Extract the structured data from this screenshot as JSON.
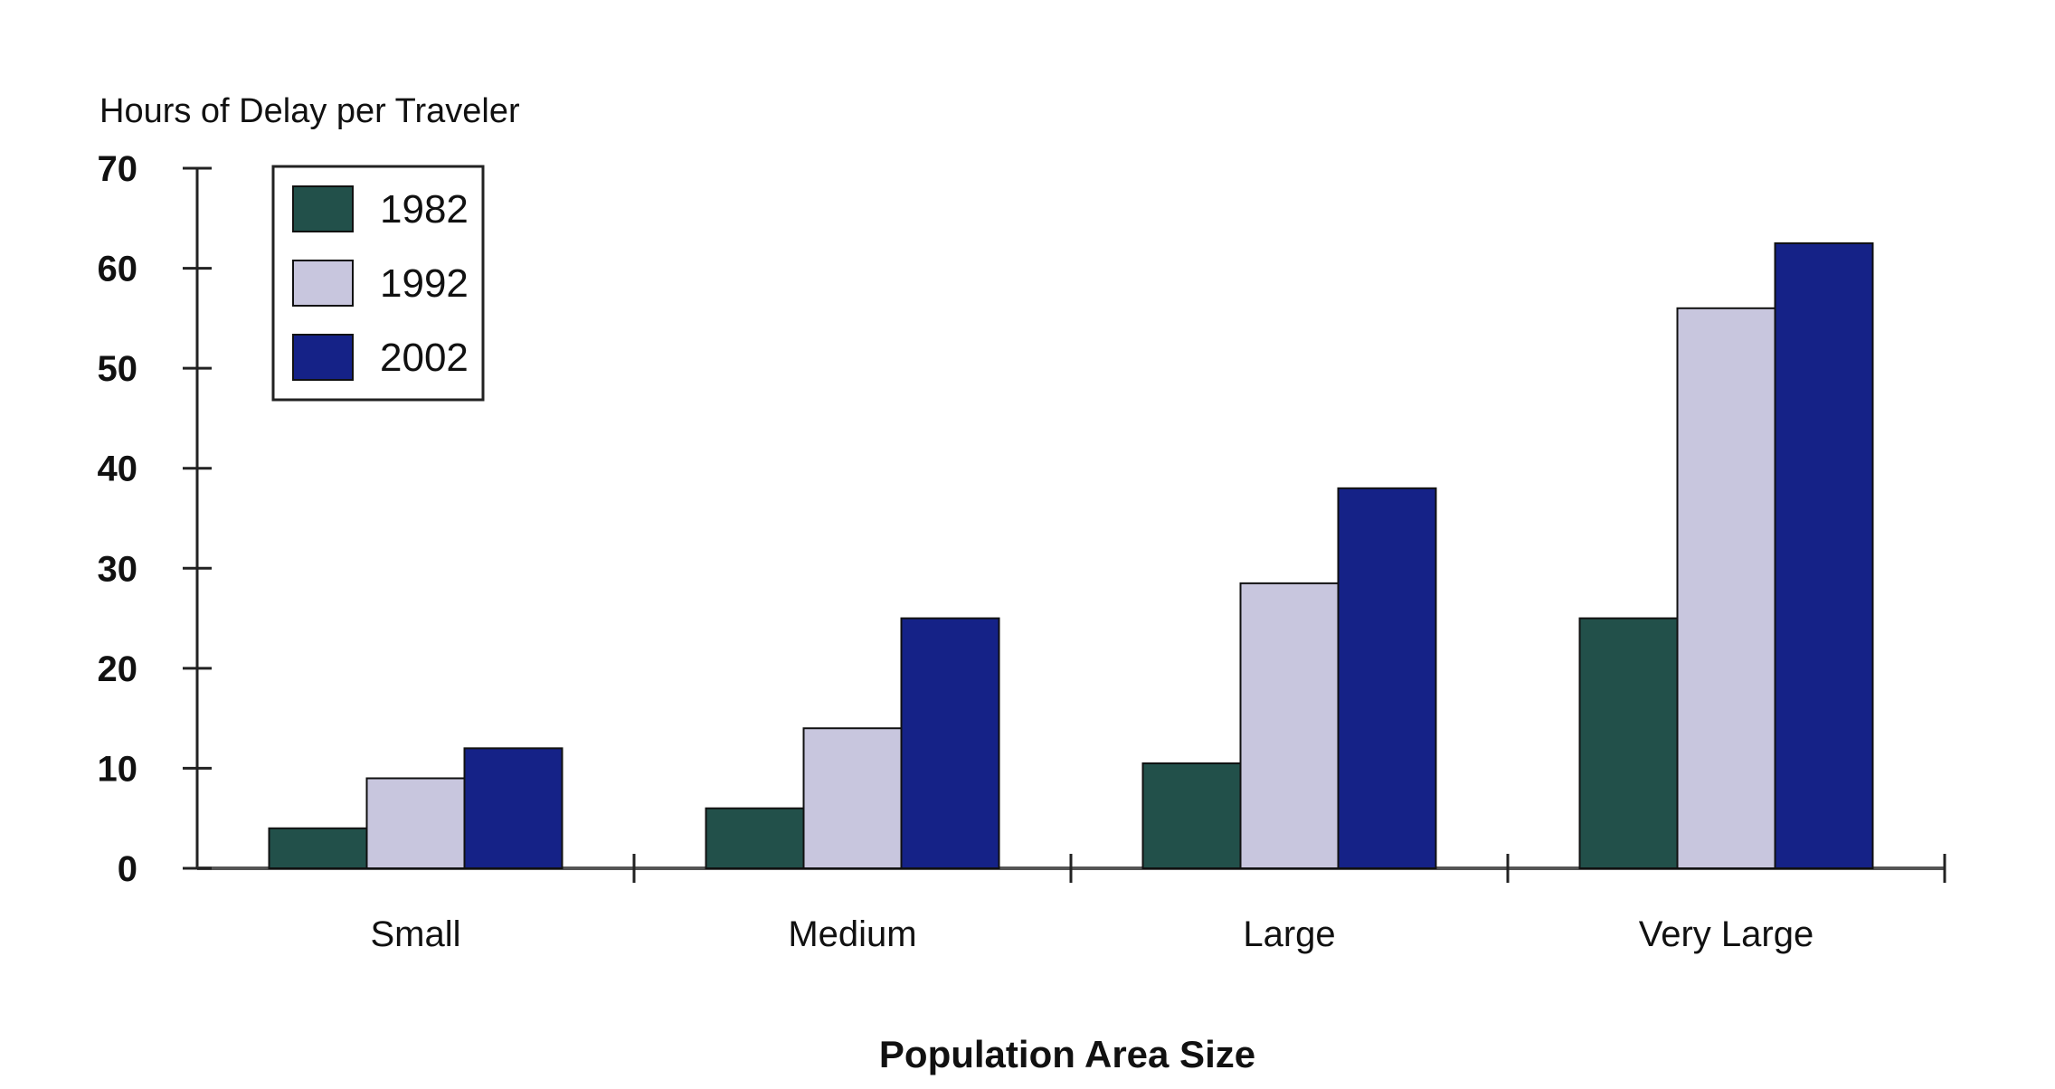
{
  "chart_data": {
    "type": "bar",
    "title": "",
    "ylabel": "Hours of Delay per Traveler",
    "xlabel": "Population Area Size",
    "categories": [
      "Small",
      "Medium",
      "Large",
      "Very Large"
    ],
    "series": [
      {
        "name": "1982",
        "color": "#22504a",
        "values": [
          4,
          6,
          10.5,
          25
        ]
      },
      {
        "name": "1992",
        "color": "#c8c6de",
        "values": [
          9,
          14,
          28.5,
          56
        ]
      },
      {
        "name": "2002",
        "color": "#152287",
        "values": [
          12,
          25,
          38,
          62.5
        ]
      }
    ],
    "ylim": [
      0,
      70
    ],
    "yticks": [
      0,
      10,
      20,
      30,
      40,
      50,
      60,
      70
    ],
    "legend_position": "top-left",
    "grid": false
  }
}
